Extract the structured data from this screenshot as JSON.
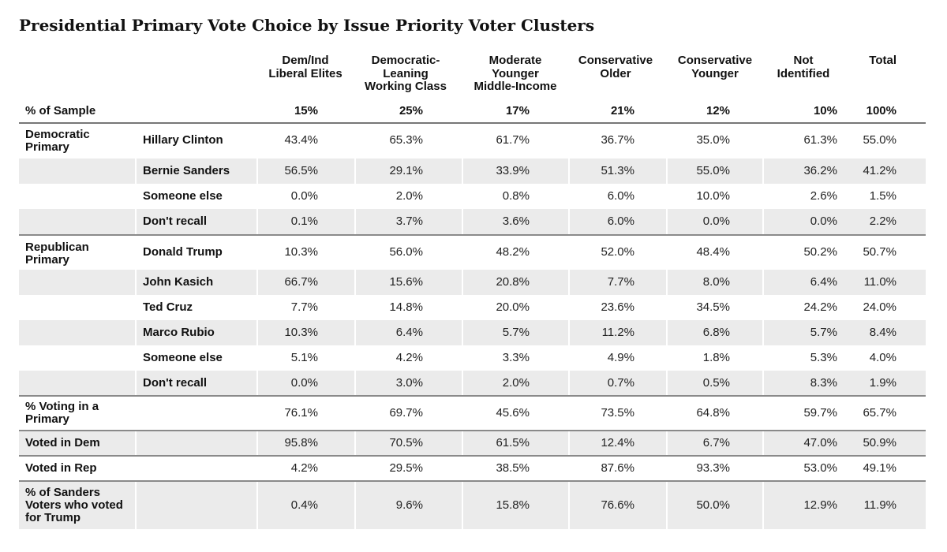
{
  "title": "Presidential Primary Vote Choice by Issue Priority Voter Clusters",
  "chart_data": {
    "type": "table",
    "columns": [
      {
        "label": "Dem/Ind\nLiberal Elites",
        "sample": "15%"
      },
      {
        "label": "Democratic-\nLeaning\nWorking Class",
        "sample": "25%"
      },
      {
        "label": "Moderate\nYounger\nMiddle-Income",
        "sample": "17%"
      },
      {
        "label": "Conservative\nOlder",
        "sample": "21%"
      },
      {
        "label": "Conservative\nYounger",
        "sample": "12%"
      },
      {
        "label": "Not\nIdentified",
        "sample": "10%"
      },
      {
        "label": "Total",
        "sample": "100%"
      }
    ],
    "sample_label": "% of Sample",
    "rows": [
      {
        "group": "Democratic\nPrimary",
        "label": "Hillary Clinton",
        "values": [
          "43.4%",
          "65.3%",
          "61.7%",
          "36.7%",
          "35.0%",
          "61.3%",
          "55.0%"
        ],
        "shaded": false,
        "rule_above": "dark"
      },
      {
        "group": "",
        "label": "Bernie Sanders",
        "values": [
          "56.5%",
          "29.1%",
          "33.9%",
          "51.3%",
          "55.0%",
          "36.2%",
          "41.2%"
        ],
        "shaded": true
      },
      {
        "group": "",
        "label": "Someone else",
        "values": [
          "0.0%",
          "2.0%",
          "0.8%",
          "6.0%",
          "10.0%",
          "2.6%",
          "1.5%"
        ],
        "shaded": false
      },
      {
        "group": "",
        "label": "Don't recall",
        "values": [
          "0.1%",
          "3.7%",
          "3.6%",
          "6.0%",
          "0.0%",
          "0.0%",
          "2.2%"
        ],
        "shaded": true
      },
      {
        "group": "Republican\nPrimary",
        "label": "Donald Trump",
        "values": [
          "10.3%",
          "56.0%",
          "48.2%",
          "52.0%",
          "48.4%",
          "50.2%",
          "50.7%"
        ],
        "shaded": false,
        "rule_above": "grey"
      },
      {
        "group": "",
        "label": "John Kasich",
        "values": [
          "66.7%",
          "15.6%",
          "20.8%",
          "7.7%",
          "8.0%",
          "6.4%",
          "11.0%"
        ],
        "shaded": true
      },
      {
        "group": "",
        "label": "Ted Cruz",
        "values": [
          "7.7%",
          "14.8%",
          "20.0%",
          "23.6%",
          "34.5%",
          "24.2%",
          "24.0%"
        ],
        "shaded": false
      },
      {
        "group": "",
        "label": "Marco Rubio",
        "values": [
          "10.3%",
          "6.4%",
          "5.7%",
          "11.2%",
          "6.8%",
          "5.7%",
          "8.4%"
        ],
        "shaded": true
      },
      {
        "group": "",
        "label": "Someone else",
        "values": [
          "5.1%",
          "4.2%",
          "3.3%",
          "4.9%",
          "1.8%",
          "5.3%",
          "4.0%"
        ],
        "shaded": false
      },
      {
        "group": "",
        "label": "Don't recall",
        "values": [
          "0.0%",
          "3.0%",
          "2.0%",
          "0.7%",
          "0.5%",
          "8.3%",
          "1.9%"
        ],
        "shaded": true
      },
      {
        "group": "% Voting in a\nPrimary",
        "label": "",
        "values": [
          "76.1%",
          "69.7%",
          "45.6%",
          "73.5%",
          "64.8%",
          "59.7%",
          "65.7%"
        ],
        "shaded": false,
        "rule_above": "grey"
      },
      {
        "group": "Voted in Dem",
        "label": "",
        "values": [
          "95.8%",
          "70.5%",
          "61.5%",
          "12.4%",
          "6.7%",
          "47.0%",
          "50.9%"
        ],
        "shaded": true,
        "rule_above": "grey"
      },
      {
        "group": "Voted in Rep",
        "label": "",
        "values": [
          "4.2%",
          "29.5%",
          "38.5%",
          "87.6%",
          "93.3%",
          "53.0%",
          "49.1%"
        ],
        "shaded": false,
        "rule_above": "grey"
      },
      {
        "group": "% of Sanders\nVoters who voted\nfor Trump",
        "label": "",
        "values": [
          "0.4%",
          "9.6%",
          "15.8%",
          "76.6%",
          "50.0%",
          "12.9%",
          "11.9%"
        ],
        "shaded": true,
        "rule_above": "grey"
      }
    ]
  }
}
